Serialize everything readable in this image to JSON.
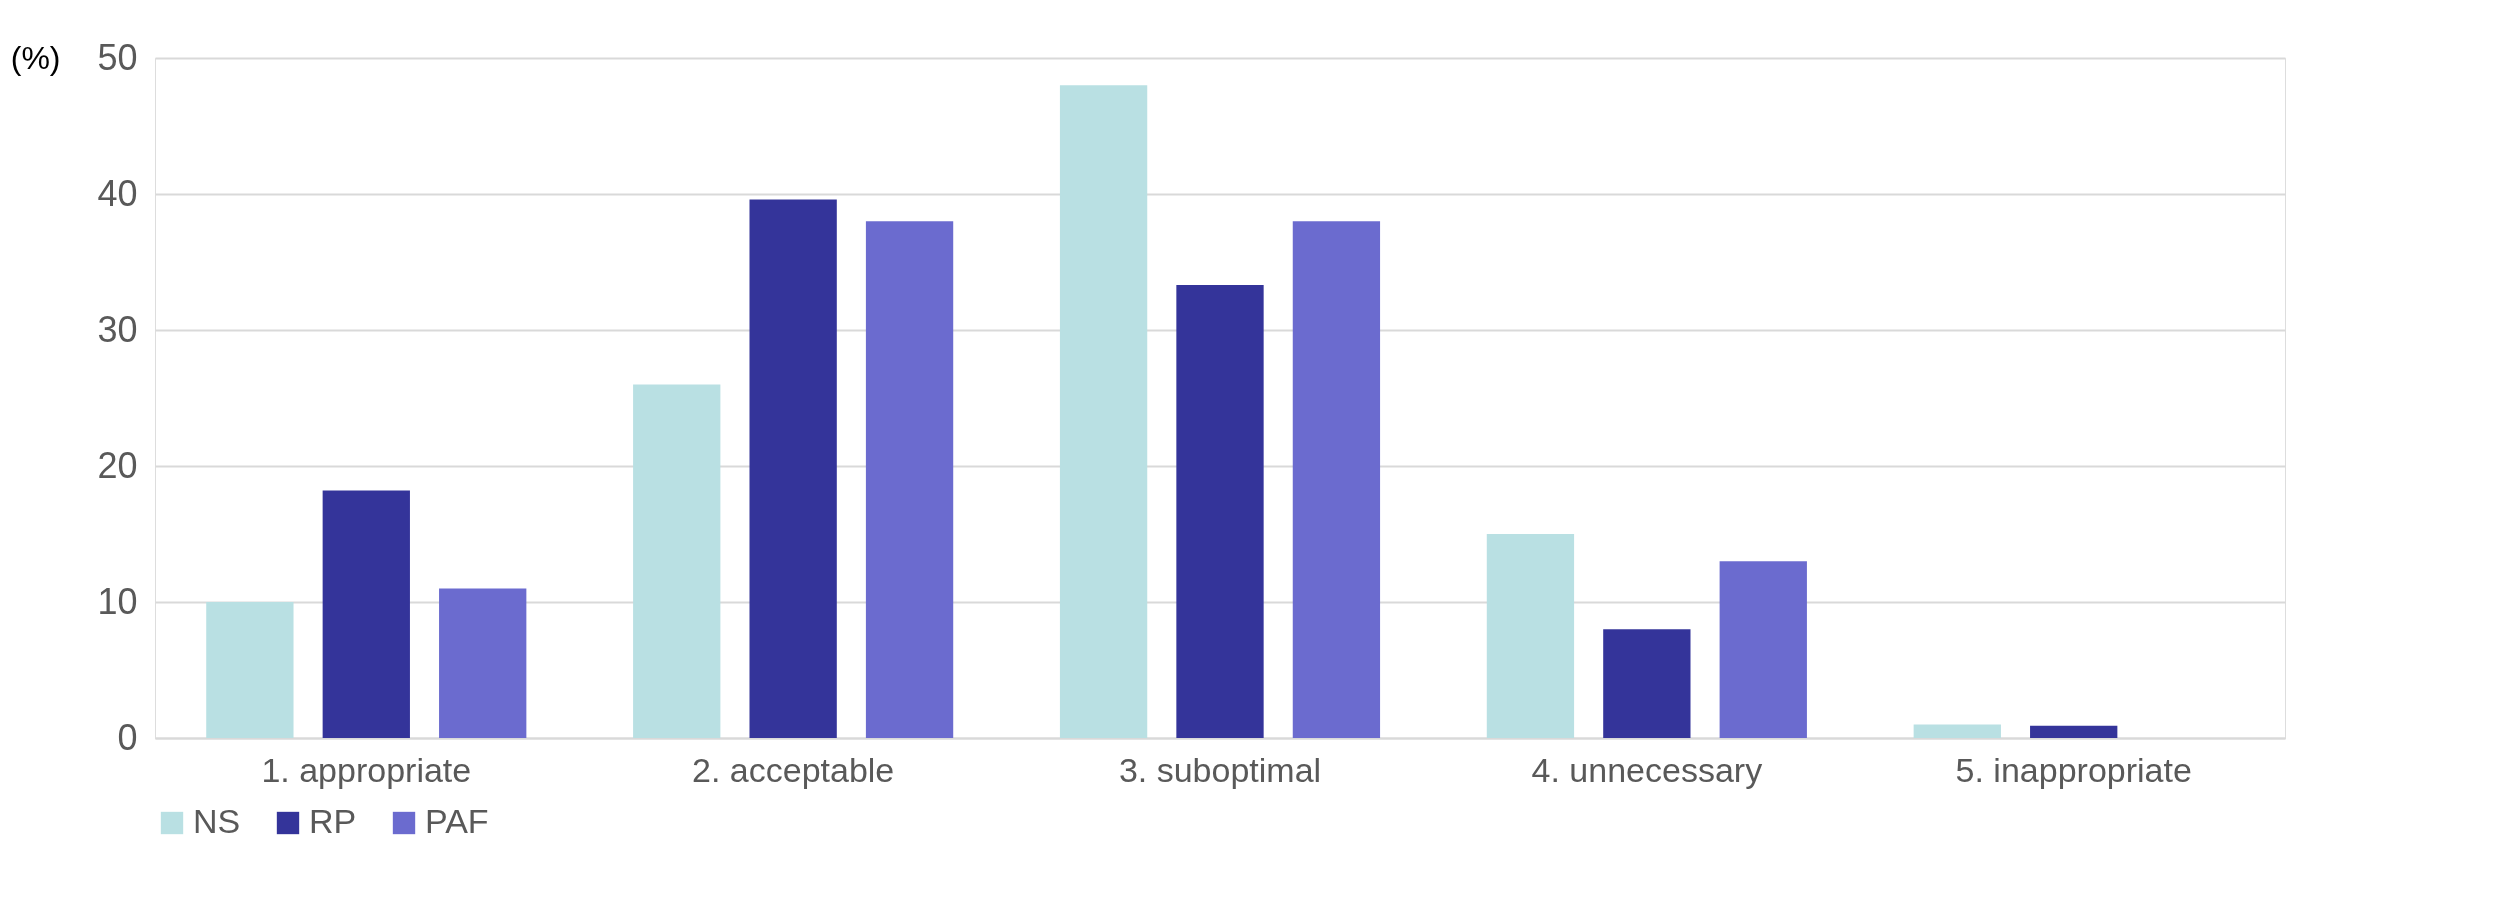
{
  "chart_data": {
    "type": "bar",
    "ylabel": "(%)",
    "categories": [
      "1. appropriate",
      "2. acceptable",
      "3. suboptimal",
      "4. unnecessary",
      "5. inappropriate"
    ],
    "series": [
      {
        "name": "NS",
        "color": "#b9e0e3",
        "values": [
          10,
          26,
          48,
          15,
          1
        ]
      },
      {
        "name": "RP",
        "color": "#34349a",
        "values": [
          18.2,
          39.6,
          33.3,
          8,
          0.9
        ]
      },
      {
        "name": "PAF",
        "color": "#6b6bcf",
        "values": [
          11,
          38,
          38,
          13,
          0
        ]
      }
    ],
    "ylim": [
      0,
      50
    ],
    "yticks": [
      0,
      10,
      20,
      30,
      40,
      50
    ],
    "grid": "y",
    "legend": "bottom"
  }
}
